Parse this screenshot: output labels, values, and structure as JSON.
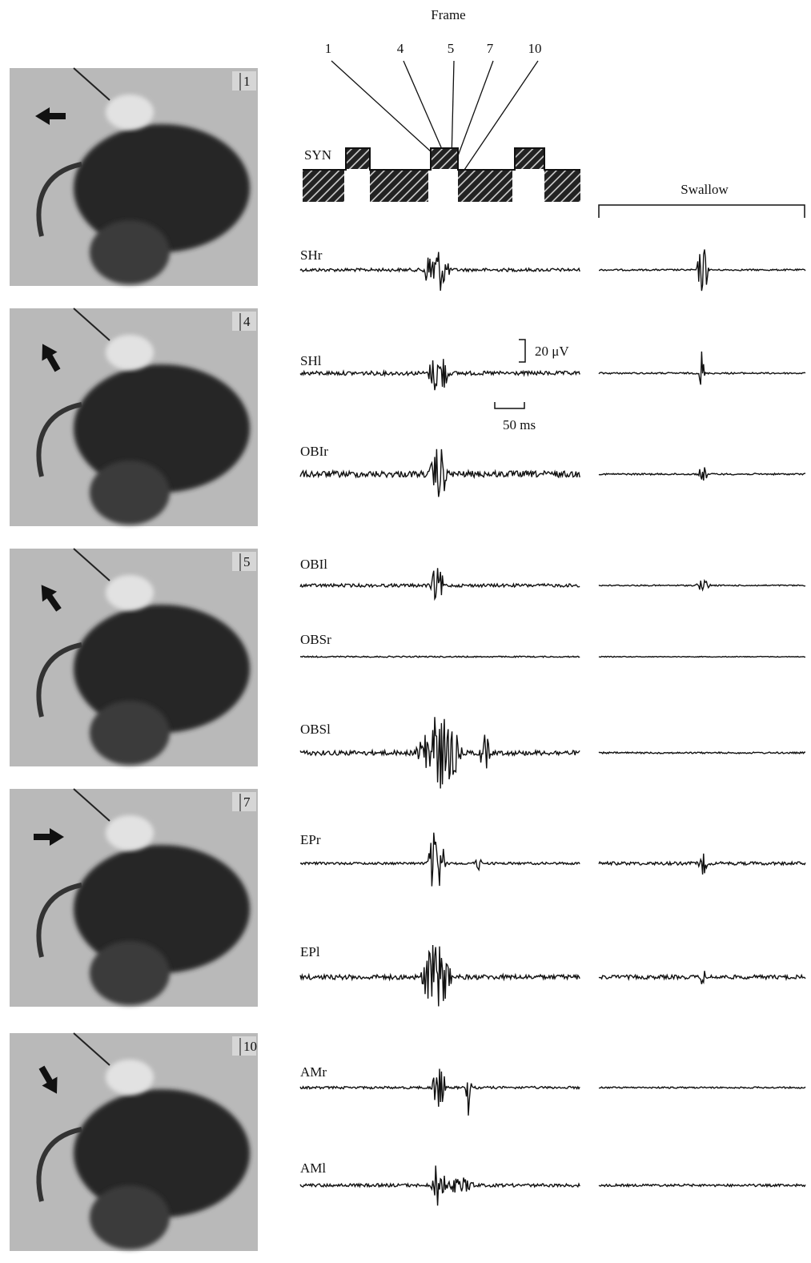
{
  "figure": {
    "frame_title": "Frame",
    "frame_markers": [
      "1",
      "4",
      "5",
      "7",
      "10"
    ],
    "photos": [
      {
        "label": "1"
      },
      {
        "label": "4"
      },
      {
        "label": "5"
      },
      {
        "label": "7"
      },
      {
        "label": "10"
      }
    ],
    "syn_label": "SYN",
    "swallow_label": "Swallow",
    "traces": [
      {
        "label": "SHr"
      },
      {
        "label": "SHl"
      },
      {
        "label": "OBIr"
      },
      {
        "label": "OBIl"
      },
      {
        "label": "OBSr"
      },
      {
        "label": "OBSl"
      },
      {
        "label": "EPr"
      },
      {
        "label": "EPl"
      },
      {
        "label": "AMr"
      },
      {
        "label": "AMl"
      }
    ],
    "scale_voltage": "20 μV",
    "scale_time": "50 ms"
  }
}
